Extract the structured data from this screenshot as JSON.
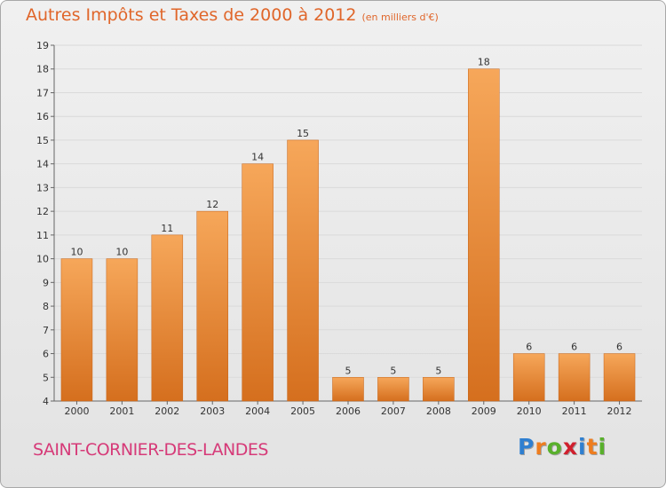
{
  "title": "Autres Impôts et Taxes de 2000 à 2012",
  "unit": "(en milliers d'€)",
  "commune": "SAINT-CORNIER-DES-LANDES",
  "brand": {
    "letters": [
      "P",
      "r",
      "o",
      "x",
      "i",
      "t",
      "i"
    ],
    "colors": [
      "#2f7fd0",
      "#ee7d1f",
      "#59b02c",
      "#d0202e",
      "#2f7fd0",
      "#ee7d1f",
      "#59b02c"
    ]
  },
  "colors": {
    "bar_top": "#f6a75a",
    "bar_bottom": "#d56f1e",
    "title": "#e0662a",
    "commune": "#d63a78"
  },
  "chart_data": {
    "type": "bar",
    "categories": [
      "2000",
      "2001",
      "2002",
      "2003",
      "2004",
      "2005",
      "2006",
      "2007",
      "2008",
      "2009",
      "2010",
      "2011",
      "2012"
    ],
    "values": [
      10,
      10,
      11,
      12,
      14,
      15,
      5,
      5,
      5,
      18,
      6,
      6,
      6
    ],
    "ylim": [
      4,
      19
    ],
    "yticks": [
      4,
      5,
      6,
      7,
      8,
      9,
      10,
      11,
      12,
      13,
      14,
      15,
      16,
      17,
      18,
      19
    ],
    "grid": true,
    "data_labels": true
  }
}
